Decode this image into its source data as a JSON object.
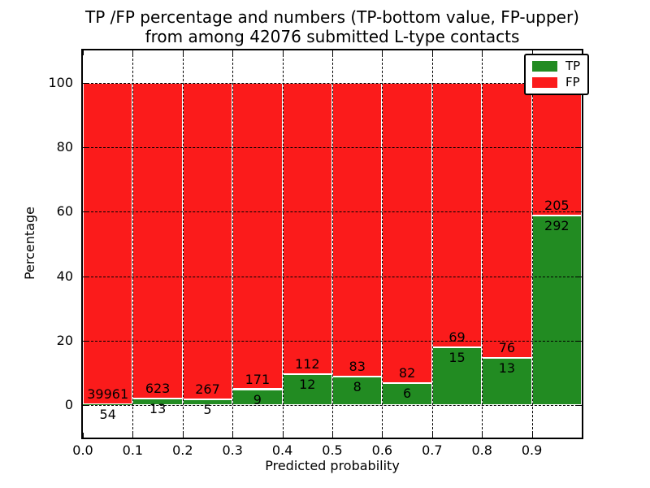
{
  "figure": {
    "title_line1": "TP /FP percentage and numbers (TP-bottom value, FP-upper)",
    "title_line2": "from among 42076 submitted L-type contacts"
  },
  "legend": {
    "items": [
      {
        "label": "TP",
        "color": "#228b22"
      },
      {
        "label": "FP",
        "color": "#fb1b1b"
      }
    ],
    "position": "upper right"
  },
  "chart_data": {
    "type": "bar",
    "stacked": true,
    "normalized_to_percent": true,
    "title": "TP /FP percentage and numbers (TP-bottom value, FP-upper)\nfrom among 42076 submitted L-type contacts",
    "total_contacts": 42076,
    "xlabel": "Predicted probability",
    "ylabel": "Percentage",
    "xlim": [
      0.0,
      1.0
    ],
    "ylim": [
      -10,
      110
    ],
    "xtick_labels": [
      "0.0",
      "0.1",
      "0.2",
      "0.3",
      "0.4",
      "0.5",
      "0.6",
      "0.7",
      "0.8",
      "0.9"
    ],
    "yticks": [
      0,
      20,
      40,
      60,
      80,
      100
    ],
    "grid": true,
    "grid_style": "dashed",
    "bin_width": 0.1,
    "bin_starts": [
      0.0,
      0.1,
      0.2,
      0.3,
      0.4,
      0.5,
      0.6,
      0.7,
      0.8,
      0.9
    ],
    "series": [
      {
        "name": "TP",
        "color": "#228b22",
        "counts": [
          54,
          13,
          5,
          9,
          12,
          8,
          6,
          15,
          13,
          292
        ],
        "percent": [
          0.13,
          2.04,
          1.84,
          5.0,
          9.68,
          8.79,
          6.82,
          17.86,
          14.61,
          58.75
        ]
      },
      {
        "name": "FP",
        "color": "#fb1b1b",
        "counts": [
          39961,
          623,
          267,
          171,
          112,
          83,
          82,
          69,
          76,
          205
        ],
        "percent": [
          99.87,
          97.96,
          98.16,
          95.0,
          90.32,
          91.21,
          93.18,
          82.14,
          85.39,
          41.25
        ]
      }
    ],
    "annotation_note": "FP count printed above TP bar top, TP count printed below TP bar top"
  }
}
